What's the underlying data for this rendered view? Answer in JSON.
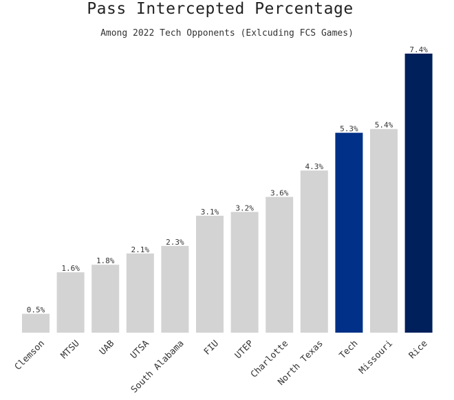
{
  "chart_data": {
    "type": "bar",
    "title": "Pass Intercepted Percentage",
    "subtitle": "Among 2022 Tech Opponents (Exlcuding FCS Games)",
    "xlabel": "",
    "ylabel": "",
    "ylim": [
      0,
      7.4
    ],
    "grid": false,
    "categories": [
      "Clemson",
      "MTSU",
      "UAB",
      "UTSA",
      "South Alabama",
      "FIU",
      "UTEP",
      "Charlotte",
      "North Texas",
      "Tech",
      "Missouri",
      "Rice"
    ],
    "values": [
      0.5,
      1.6,
      1.8,
      2.1,
      2.3,
      3.1,
      3.2,
      3.6,
      4.3,
      5.3,
      5.4,
      7.4
    ],
    "value_labels": [
      "0.5%",
      "1.6%",
      "1.8%",
      "2.1%",
      "2.3%",
      "3.1%",
      "3.2%",
      "3.6%",
      "4.3%",
      "5.3%",
      "5.4%",
      "7.4%"
    ],
    "bar_colors": [
      "#d3d3d3",
      "#d3d3d3",
      "#d3d3d3",
      "#d3d3d3",
      "#d3d3d3",
      "#d3d3d3",
      "#d3d3d3",
      "#d3d3d3",
      "#d3d3d3",
      "#003087",
      "#d3d3d3",
      "#00205b"
    ]
  }
}
